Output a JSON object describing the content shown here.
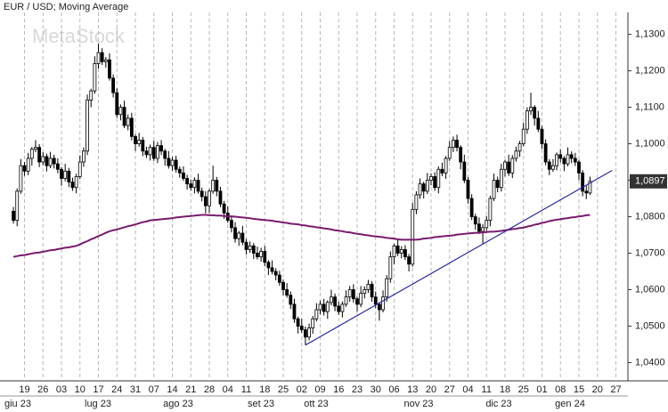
{
  "chart_data": {
    "type": "candlestick",
    "title": "EUR / USD; Moving Average",
    "watermark": "MetaStock",
    "ylim": [
      1.035,
      1.136
    ],
    "yticks": [
      {
        "value": 1.04,
        "label": "1,0400"
      },
      {
        "value": 1.05,
        "label": "1,0500"
      },
      {
        "value": 1.06,
        "label": "1,0600"
      },
      {
        "value": 1.07,
        "label": "1,0700"
      },
      {
        "value": 1.08,
        "label": "1,0800"
      },
      {
        "value": 1.09,
        "label": "1,0900"
      },
      {
        "value": 1.1,
        "label": "1,1000"
      },
      {
        "value": 1.11,
        "label": "1,1100"
      },
      {
        "value": 1.12,
        "label": "1,1200"
      },
      {
        "value": 1.13,
        "label": "1,1300"
      }
    ],
    "grid": true,
    "categories": [
      null,
      null,
      null,
      "19",
      null,
      null,
      null,
      null,
      "26",
      null,
      null,
      null,
      null,
      "03",
      null,
      null,
      null,
      null,
      "10",
      null,
      null,
      null,
      null,
      "17",
      null,
      null,
      null,
      null,
      "24",
      null,
      null,
      null,
      null,
      "31",
      null,
      null,
      null,
      null,
      "07",
      null,
      null,
      null,
      null,
      "14",
      null,
      null,
      null,
      null,
      "21",
      null,
      null,
      null,
      null,
      "28",
      null,
      null,
      null,
      null,
      "04",
      null,
      null,
      null,
      null,
      "11",
      null,
      null,
      null,
      null,
      "18",
      null,
      null,
      null,
      null,
      "25",
      null,
      null,
      null,
      null,
      "02",
      null,
      null,
      null,
      null,
      "09",
      null,
      null,
      null,
      null,
      "16",
      null,
      null,
      null,
      null,
      "23",
      null,
      null,
      null,
      null,
      "30",
      null,
      null,
      null,
      null,
      "06",
      null,
      null,
      null,
      null,
      "13",
      null,
      null,
      null,
      null,
      "20",
      null,
      null,
      null,
      null,
      "27",
      null,
      null,
      null,
      null,
      "04",
      null,
      null,
      null,
      null,
      "11",
      null,
      null,
      null,
      null,
      "18",
      null,
      null,
      null,
      null,
      "25",
      null,
      null,
      null,
      null,
      "01",
      null,
      null,
      null,
      null,
      "08",
      null,
      null,
      null,
      null,
      "15",
      null,
      null,
      null,
      null,
      "20",
      null,
      null,
      null,
      null,
      "27",
      null,
      null,
      null
    ],
    "month_labels": [
      "giu 23",
      "lug 23",
      "ago 23",
      "set 23",
      "ott 23",
      "nov 23",
      "dic 23",
      "gen 24"
    ],
    "candle_color": "#000000",
    "up_fill": "#ffffff",
    "ohlc": [
      [
        1.0815,
        1.0827,
        1.0781,
        1.079
      ],
      [
        1.079,
        1.0878,
        1.0774,
        1.087
      ],
      [
        1.087,
        1.0958,
        1.0863,
        1.094
      ],
      [
        1.094,
        1.095,
        1.0912,
        1.0925
      ],
      [
        1.0925,
        1.0975,
        1.0914,
        1.096
      ],
      [
        1.096,
        1.0991,
        1.094,
        1.0985
      ],
      [
        1.0985,
        1.101,
        1.0977,
        1.099
      ],
      [
        1.099,
        1.0999,
        1.0936,
        1.095
      ],
      [
        1.095,
        1.0977,
        1.0941,
        1.0965
      ],
      [
        1.0965,
        1.0973,
        1.0924,
        1.094
      ],
      [
        1.094,
        1.0978,
        1.0933,
        1.096
      ],
      [
        1.096,
        1.097,
        1.0932,
        1.0945
      ],
      [
        1.0945,
        1.096,
        1.0919,
        1.093
      ],
      [
        1.093,
        1.0936,
        1.0885,
        1.0905
      ],
      [
        1.0905,
        1.0945,
        1.0897,
        1.0925
      ],
      [
        1.0925,
        1.0934,
        1.0881,
        1.0895
      ],
      [
        1.0895,
        1.0907,
        1.0871,
        1.088
      ],
      [
        1.088,
        1.0918,
        1.0864,
        1.091
      ],
      [
        1.091,
        1.0968,
        1.0903,
        1.095
      ],
      [
        1.095,
        1.099,
        1.0937,
        1.098
      ],
      [
        1.098,
        1.1135,
        1.0969,
        1.112
      ],
      [
        1.112,
        1.1151,
        1.11,
        1.1145
      ],
      [
        1.1145,
        1.124,
        1.1137,
        1.122
      ],
      [
        1.122,
        1.1275,
        1.1206,
        1.125
      ],
      [
        1.125,
        1.1262,
        1.1216,
        1.1225
      ],
      [
        1.1225,
        1.1238,
        1.1209,
        1.123
      ],
      [
        1.123,
        1.1248,
        1.1173,
        1.118
      ],
      [
        1.118,
        1.119,
        1.1127,
        1.114
      ],
      [
        1.114,
        1.1152,
        1.1071,
        1.108
      ],
      [
        1.108,
        1.1108,
        1.1064,
        1.11
      ],
      [
        1.11,
        1.1118,
        1.1043,
        1.105
      ],
      [
        1.105,
        1.108,
        1.1037,
        1.107
      ],
      [
        1.107,
        1.1085,
        1.1009,
        1.102
      ],
      [
        1.102,
        1.1026,
        1.098,
        1.1
      ],
      [
        1.1,
        1.103,
        1.0992,
        1.101
      ],
      [
        1.101,
        1.1019,
        1.0966,
        1.098
      ],
      [
        1.098,
        1.0992,
        1.0961,
        1.097
      ],
      [
        1.097,
        1.0998,
        1.0954,
        1.099
      ],
      [
        1.099,
        1.1008,
        1.0953,
        1.096
      ],
      [
        1.096,
        1.1005,
        1.0947,
        1.0995
      ],
      [
        1.0995,
        1.101,
        1.0969,
        1.098
      ],
      [
        1.098,
        1.0986,
        1.094,
        1.096
      ],
      [
        1.096,
        1.098,
        1.0932,
        1.094
      ],
      [
        1.094,
        1.0964,
        1.0926,
        1.0955
      ],
      [
        1.0955,
        1.0967,
        1.0921,
        1.093
      ],
      [
        1.093,
        1.0938,
        1.0907,
        1.092
      ],
      [
        1.092,
        1.0938,
        1.0898,
        1.0905
      ],
      [
        1.0905,
        1.0915,
        1.0874,
        1.089
      ],
      [
        1.089,
        1.0902,
        1.0871,
        1.088
      ],
      [
        1.088,
        1.0908,
        1.0864,
        1.09
      ],
      [
        1.09,
        1.0918,
        1.0863,
        1.087
      ],
      [
        1.087,
        1.088,
        1.0842,
        1.0855
      ],
      [
        1.0855,
        1.087,
        1.0809,
        1.083
      ],
      [
        1.083,
        1.0876,
        1.081,
        1.087
      ],
      [
        1.087,
        1.094,
        1.0863,
        1.09
      ],
      [
        1.09,
        1.0909,
        1.0856,
        1.087
      ],
      [
        1.087,
        1.0882,
        1.0826,
        1.0835
      ],
      [
        1.0835,
        1.0843,
        1.0794,
        1.081
      ],
      [
        1.081,
        1.0828,
        1.0783,
        1.079
      ],
      [
        1.079,
        1.08,
        1.0757,
        1.077
      ],
      [
        1.077,
        1.0785,
        1.0729,
        1.074
      ],
      [
        1.074,
        1.0761,
        1.072,
        1.0755
      ],
      [
        1.0755,
        1.0775,
        1.0722,
        1.073
      ],
      [
        1.073,
        1.0739,
        1.0696,
        1.071
      ],
      [
        1.071,
        1.0732,
        1.0701,
        1.072
      ],
      [
        1.072,
        1.0728,
        1.0684,
        1.07
      ],
      [
        1.07,
        1.0718,
        1.0683,
        1.069
      ],
      [
        1.069,
        1.0715,
        1.0677,
        1.0705
      ],
      [
        1.0705,
        1.072,
        1.0664,
        1.0675
      ],
      [
        1.0675,
        1.0681,
        1.064,
        1.066
      ],
      [
        1.066,
        1.068,
        1.0642,
        1.065
      ],
      [
        1.065,
        1.0659,
        1.0626,
        1.064
      ],
      [
        1.064,
        1.0652,
        1.0611,
        1.062
      ],
      [
        1.062,
        1.0628,
        1.0584,
        1.06
      ],
      [
        1.06,
        1.0618,
        1.0578,
        1.0585
      ],
      [
        1.0585,
        1.0595,
        1.0547,
        1.056
      ],
      [
        1.056,
        1.0575,
        1.0509,
        1.052
      ],
      [
        1.052,
        1.0526,
        1.048,
        1.05
      ],
      [
        1.05,
        1.052,
        1.0482,
        1.049
      ],
      [
        1.049,
        1.0499,
        1.0448,
        1.047
      ],
      [
        1.047,
        1.0507,
        1.0461,
        1.0495
      ],
      [
        1.0495,
        1.0528,
        1.0479,
        1.052
      ],
      [
        1.052,
        1.0563,
        1.0513,
        1.0545
      ],
      [
        1.0545,
        1.057,
        1.0532,
        1.056
      ],
      [
        1.056,
        1.0575,
        1.0529,
        1.054
      ],
      [
        1.054,
        1.0571,
        1.052,
        1.0565
      ],
      [
        1.0565,
        1.06,
        1.0557,
        1.058
      ],
      [
        1.058,
        1.0589,
        1.0541,
        1.0555
      ],
      [
        1.0555,
        1.0567,
        1.0531,
        1.054
      ],
      [
        1.054,
        1.0568,
        1.0524,
        1.056
      ],
      [
        1.056,
        1.0598,
        1.0553,
        1.058
      ],
      [
        1.058,
        1.061,
        1.0567,
        1.06
      ],
      [
        1.06,
        1.0615,
        1.0564,
        1.0575
      ],
      [
        1.0575,
        1.0581,
        1.054,
        1.056
      ],
      [
        1.056,
        1.061,
        1.0552,
        1.059
      ],
      [
        1.059,
        1.0609,
        1.0576,
        1.06
      ],
      [
        1.06,
        1.0627,
        1.0591,
        1.0615
      ],
      [
        1.0615,
        1.0623,
        1.0567,
        1.058
      ],
      [
        1.058,
        1.0595,
        1.0549,
        1.056
      ],
      [
        1.056,
        1.0566,
        1.0515,
        1.0545
      ],
      [
        1.0545,
        1.0598,
        1.0538,
        1.058
      ],
      [
        1.058,
        1.064,
        1.0567,
        1.063
      ],
      [
        1.063,
        1.0705,
        1.0619,
        1.069
      ],
      [
        1.069,
        1.0726,
        1.067,
        1.072
      ],
      [
        1.072,
        1.074,
        1.0692,
        1.07
      ],
      [
        1.07,
        1.0719,
        1.0686,
        1.071
      ],
      [
        1.071,
        1.0722,
        1.0681,
        1.069
      ],
      [
        1.069,
        1.0698,
        1.065,
        1.067
      ],
      [
        1.067,
        1.0838,
        1.0663,
        1.082
      ],
      [
        1.082,
        1.087,
        1.0807,
        1.086
      ],
      [
        1.086,
        1.0905,
        1.0849,
        1.089
      ],
      [
        1.089,
        1.0896,
        1.085,
        1.087
      ],
      [
        1.087,
        1.092,
        1.0862,
        1.09
      ],
      [
        1.09,
        1.0919,
        1.0886,
        1.091
      ],
      [
        1.091,
        1.0922,
        1.0871,
        1.088
      ],
      [
        1.088,
        1.0938,
        1.0864,
        1.093
      ],
      [
        1.093,
        1.0948,
        1.0911,
        1.092
      ],
      [
        1.092,
        1.0966,
        1.0904,
        1.096
      ],
      [
        1.096,
        1.1008,
        1.0953,
        1.099
      ],
      [
        1.099,
        1.102,
        1.0977,
        1.101
      ],
      [
        1.101,
        1.1025,
        1.0979,
        1.099
      ],
      [
        1.099,
        1.0996,
        1.093,
        1.095
      ],
      [
        1.095,
        1.097,
        1.0892,
        1.09
      ],
      [
        1.09,
        1.0909,
        1.0836,
        1.085
      ],
      [
        1.085,
        1.0862,
        1.0791,
        1.08
      ],
      [
        1.08,
        1.0808,
        1.0764,
        1.078
      ],
      [
        1.078,
        1.0798,
        1.0753,
        1.076
      ],
      [
        1.076,
        1.078,
        1.0725,
        1.077
      ],
      [
        1.077,
        1.0802,
        1.0761,
        1.079
      ],
      [
        1.079,
        1.0858,
        1.0774,
        1.085
      ],
      [
        1.085,
        1.0918,
        1.0843,
        1.09
      ],
      [
        1.09,
        1.091,
        1.0867,
        1.088
      ],
      [
        1.088,
        1.0945,
        1.0869,
        1.093
      ],
      [
        1.093,
        1.0956,
        1.091,
        1.095
      ],
      [
        1.095,
        1.097,
        1.0912,
        1.092
      ],
      [
        1.092,
        1.0969,
        1.0906,
        1.096
      ],
      [
        1.096,
        1.0992,
        1.0951,
        1.098
      ],
      [
        1.098,
        1.1008,
        1.0964,
        1.1
      ],
      [
        1.1,
        1.1058,
        1.0993,
        1.104
      ],
      [
        1.104,
        1.11,
        1.1027,
        1.109
      ],
      [
        1.109,
        1.114,
        1.1079,
        1.11
      ],
      [
        1.11,
        1.1106,
        1.105,
        1.107
      ],
      [
        1.107,
        1.109,
        1.1032,
        1.104
      ],
      [
        1.104,
        1.1049,
        1.0986,
        1.1
      ],
      [
        1.1,
        1.1012,
        1.0941,
        1.095
      ],
      [
        1.095,
        1.0958,
        1.0914,
        1.093
      ],
      [
        1.093,
        1.0958,
        1.0923,
        1.094
      ],
      [
        1.094,
        1.0976,
        1.0927,
        1.097
      ],
      [
        1.097,
        1.0985,
        1.0949,
        1.096
      ],
      [
        1.096,
        1.0966,
        1.0925,
        1.0945
      ],
      [
        1.0945,
        1.099,
        1.0938,
        1.097
      ],
      [
        1.097,
        1.0979,
        1.0947,
        1.096
      ],
      [
        1.096,
        1.0975,
        1.0939,
        1.095
      ],
      [
        1.095,
        1.0956,
        1.09,
        1.092
      ],
      [
        1.092,
        1.0928,
        1.0856,
        1.087
      ],
      [
        1.087,
        1.0885,
        1.0848,
        1.0865
      ],
      [
        1.0865,
        1.091,
        1.086,
        1.0897
      ],
      null,
      null,
      null,
      null,
      null,
      null,
      null,
      null,
      null,
      null
    ],
    "moving_average": {
      "color": "#7a1a6e",
      "values": [
        1.069,
        1.0692,
        1.0694,
        1.0695,
        1.0697,
        1.0699,
        1.0701,
        1.0702,
        1.0704,
        1.0706,
        1.0708,
        1.0709,
        1.0711,
        1.0713,
        1.0715,
        1.0716,
        1.0718,
        1.072,
        1.0724,
        1.0729,
        1.0733,
        1.0738,
        1.0742,
        1.0747,
        1.0751,
        1.0756,
        1.076,
        1.0763,
        1.0765,
        1.0768,
        1.0771,
        1.0774,
        1.0776,
        1.0779,
        1.0782,
        1.0785,
        1.0787,
        1.079,
        1.0791,
        1.0792,
        1.0793,
        1.0794,
        1.0795,
        1.0796,
        1.0798,
        1.0799,
        1.08,
        1.0801,
        1.0802,
        1.0803,
        1.0804,
        1.0805,
        1.0805,
        1.0804,
        1.0804,
        1.0803,
        1.0803,
        1.0802,
        1.0801,
        1.0801,
        1.08,
        1.0799,
        1.0798,
        1.0797,
        1.0796,
        1.0794,
        1.0793,
        1.0792,
        1.0791,
        1.079,
        1.0789,
        1.0787,
        1.0786,
        1.0784,
        1.0783,
        1.0781,
        1.078,
        1.0779,
        1.0777,
        1.0776,
        1.0774,
        1.0773,
        1.0771,
        1.077,
        1.0768,
        1.0767,
        1.0765,
        1.0763,
        1.0762,
        1.076,
        1.0758,
        1.0757,
        1.0755,
        1.0753,
        1.0752,
        1.075,
        1.0749,
        1.0747,
        1.0746,
        1.0745,
        1.0744,
        1.0742,
        1.0741,
        1.074,
        1.0738,
        1.0737,
        1.0737,
        1.0737,
        1.0737,
        1.0737,
        1.0738,
        1.074,
        1.0741,
        1.0742,
        1.0744,
        1.0745,
        1.0746,
        1.0747,
        1.0748,
        1.0749,
        1.0751,
        1.0752,
        1.0753,
        1.0754,
        1.0755,
        1.0756,
        1.0756,
        1.0757,
        1.0758,
        1.0759,
        1.0759,
        1.076,
        1.0761,
        1.0763,
        1.0764,
        1.0766,
        1.0767,
        1.0769,
        1.077,
        1.0773,
        1.0775,
        1.0778,
        1.078,
        1.0783,
        1.0785,
        1.0788,
        1.079,
        1.0792,
        1.0793,
        1.0795,
        1.0796,
        1.0798,
        1.0799,
        1.0801,
        1.0802,
        1.0804,
        1.0805,
        null,
        null,
        null,
        null,
        null,
        null,
        null,
        null,
        null,
        null
      ]
    },
    "trendline": {
      "color": "#2a2aa8",
      "start_index": 79,
      "end_index": 162,
      "start": 1.0448,
      "end": 1.0927
    },
    "last_price": {
      "value": 1.0897,
      "label": "1,0897"
    }
  }
}
